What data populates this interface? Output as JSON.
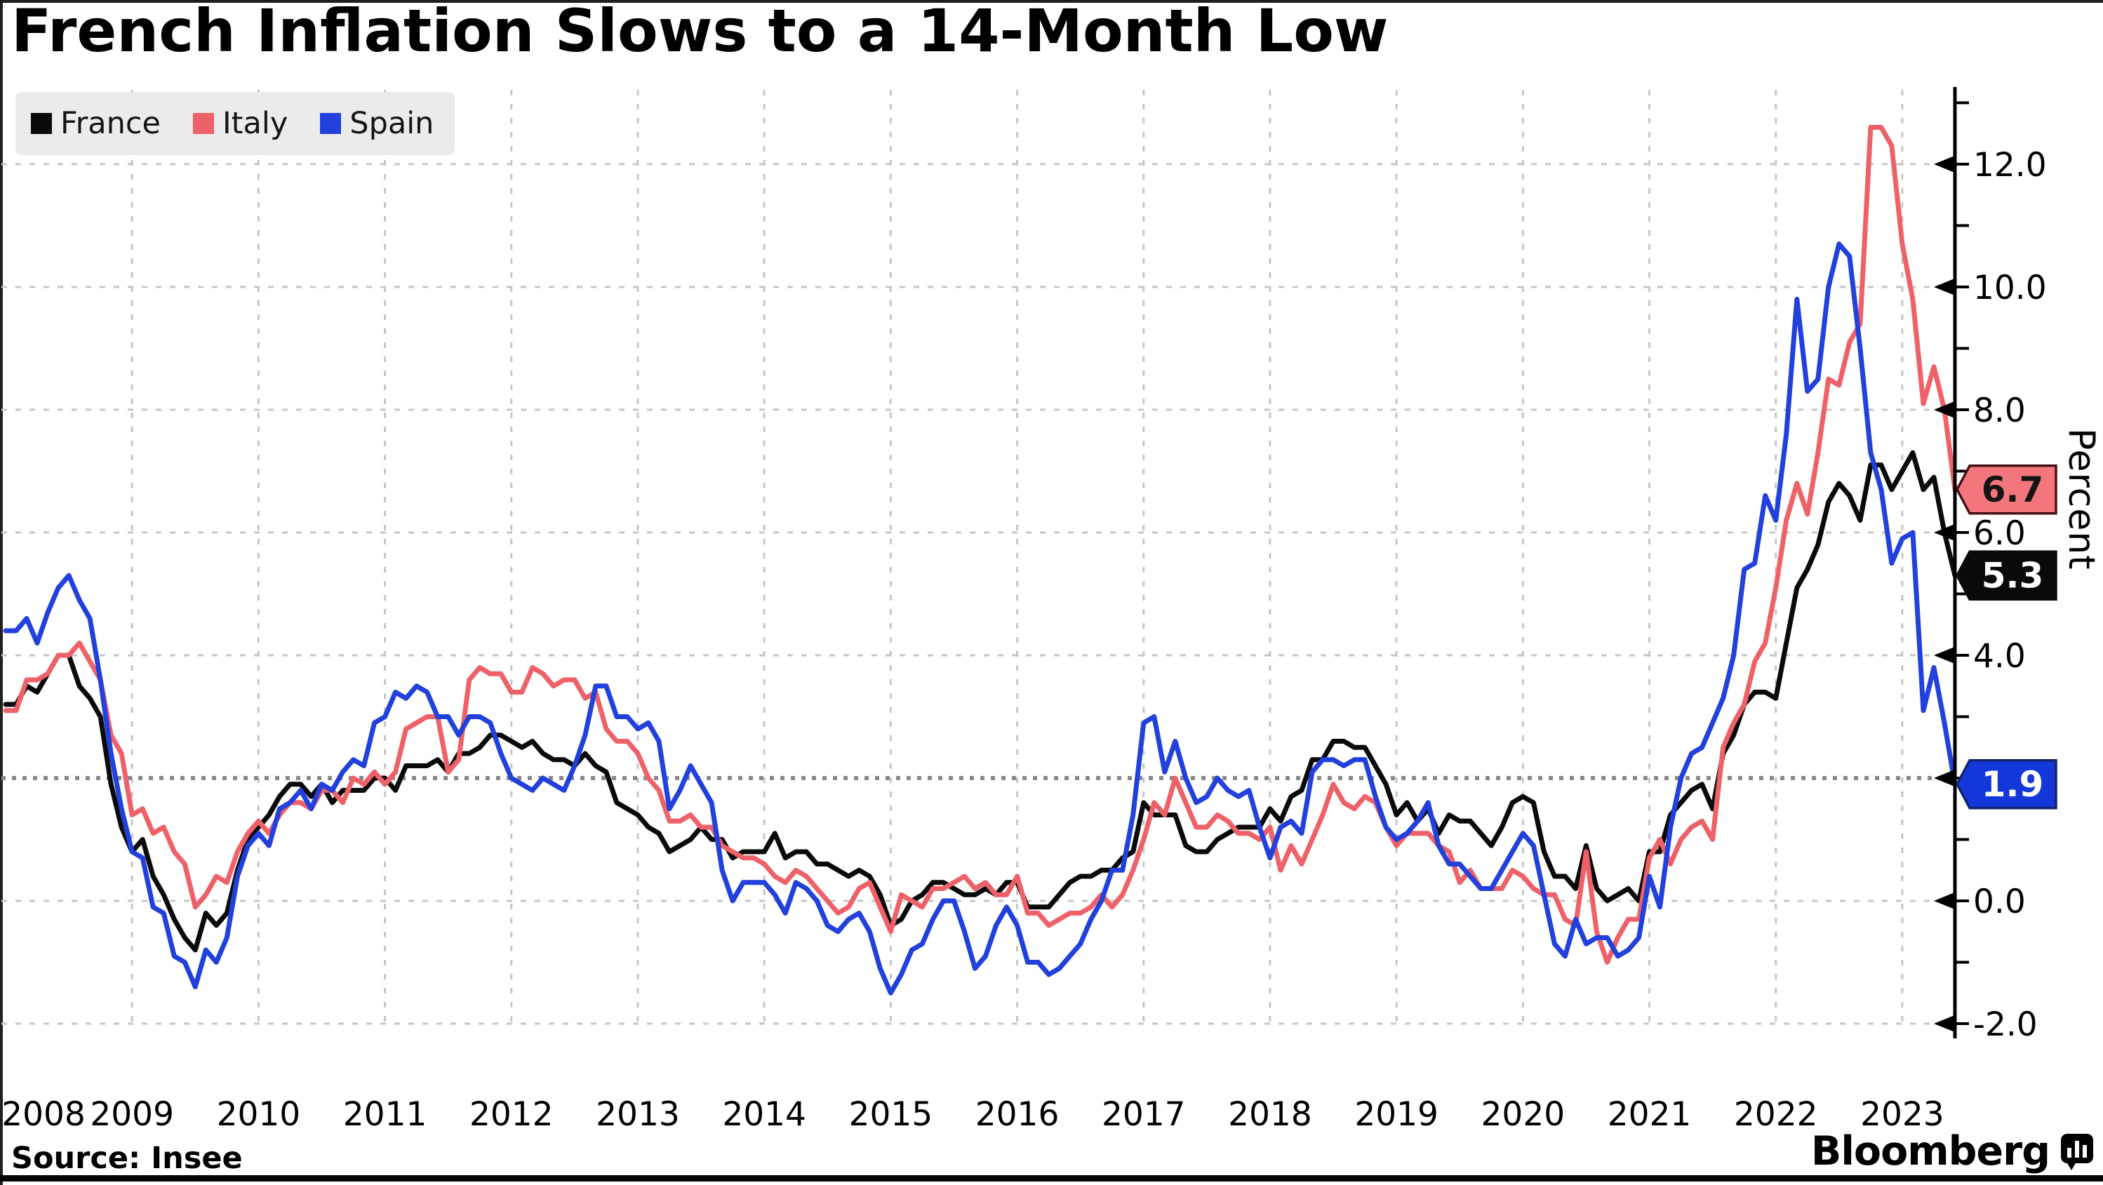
{
  "title": "French Inflation Slows to a 14-Month Low",
  "footer": {
    "source": "Source: Insee",
    "brand": "Bloomberg"
  },
  "chart_data": {
    "type": "line",
    "title": "French Inflation Slows to a 14-Month Low",
    "xlabel": "",
    "ylabel": "Percent",
    "frequency": "monthly",
    "x_start": "2008-01",
    "x_end": "2023-06",
    "ylim": [
      -2.6,
      13.3
    ],
    "grid": true,
    "legend_position": "top-left",
    "reference_line": {
      "value": 2.0,
      "style": "dotted"
    },
    "y_ticks": [
      {
        "value": 12,
        "label": "12.0"
      },
      {
        "value": 10,
        "label": "10.0"
      },
      {
        "value": 8,
        "label": "8.0"
      },
      {
        "value": 6,
        "label": "6.0"
      },
      {
        "value": 4,
        "label": "4.0"
      },
      {
        "value": 0,
        "label": "0.0"
      },
      {
        "value": -2,
        "label": "-2.0"
      }
    ],
    "y_minor_ticks": [
      13,
      11,
      9,
      7,
      5,
      3,
      1,
      -1
    ],
    "y_major_tick_values": [
      12,
      10,
      8,
      6,
      4,
      2,
      0,
      -2
    ],
    "x_year_labels": [
      "2008",
      "2009",
      "2010",
      "2011",
      "2012",
      "2013",
      "2014",
      "2015",
      "2016",
      "2017",
      "2018",
      "2019",
      "2020",
      "2021",
      "2022",
      "2023"
    ],
    "colors": {
      "grid": "#c6c6c6",
      "reference": "#8a8a8a",
      "axis": "#000000",
      "tick_label": "#000000"
    },
    "series": [
      {
        "name": "France",
        "color": "#0a0a0a",
        "end_label": {
          "text": "5.3",
          "fill": "#0a0a0a",
          "text_color": "#ffffff",
          "border": "#0a0a0a"
        },
        "values": [
          3.2,
          3.2,
          3.5,
          3.4,
          3.7,
          4.0,
          4.0,
          3.5,
          3.3,
          3.0,
          1.9,
          1.2,
          0.8,
          1.0,
          0.4,
          0.1,
          -0.3,
          -0.6,
          -0.8,
          -0.2,
          -0.4,
          -0.2,
          0.5,
          1.0,
          1.2,
          1.4,
          1.7,
          1.9,
          1.9,
          1.7,
          1.9,
          1.6,
          1.8,
          1.8,
          1.8,
          2.0,
          2.0,
          1.8,
          2.2,
          2.2,
          2.2,
          2.3,
          2.1,
          2.4,
          2.4,
          2.5,
          2.7,
          2.7,
          2.6,
          2.5,
          2.6,
          2.4,
          2.3,
          2.3,
          2.2,
          2.4,
          2.2,
          2.1,
          1.6,
          1.5,
          1.4,
          1.2,
          1.1,
          0.8,
          0.9,
          1.0,
          1.2,
          1.0,
          1.0,
          0.7,
          0.8,
          0.8,
          0.8,
          1.1,
          0.7,
          0.8,
          0.8,
          0.6,
          0.6,
          0.5,
          0.4,
          0.5,
          0.4,
          0.1,
          -0.4,
          -0.3,
          0.0,
          0.1,
          0.3,
          0.3,
          0.2,
          0.1,
          0.1,
          0.2,
          0.1,
          0.3,
          0.3,
          -0.1,
          -0.1,
          -0.1,
          0.1,
          0.3,
          0.4,
          0.4,
          0.5,
          0.5,
          0.7,
          0.8,
          1.6,
          1.4,
          1.4,
          1.4,
          0.9,
          0.8,
          0.8,
          1.0,
          1.1,
          1.2,
          1.2,
          1.2,
          1.5,
          1.3,
          1.7,
          1.8,
          2.3,
          2.3,
          2.6,
          2.6,
          2.5,
          2.5,
          2.2,
          1.9,
          1.4,
          1.6,
          1.3,
          1.5,
          1.1,
          1.4,
          1.3,
          1.3,
          1.1,
          0.9,
          1.2,
          1.6,
          1.7,
          1.6,
          0.8,
          0.4,
          0.4,
          0.2,
          0.9,
          0.2,
          0.0,
          0.1,
          0.2,
          0.0,
          0.8,
          0.8,
          1.4,
          1.6,
          1.8,
          1.9,
          1.5,
          2.4,
          2.7,
          3.2,
          3.4,
          3.4,
          3.3,
          4.2,
          5.1,
          5.4,
          5.8,
          6.5,
          6.8,
          6.6,
          6.2,
          7.1,
          7.1,
          6.7,
          7.0,
          7.3,
          6.7,
          6.9,
          6.0,
          5.3
        ]
      },
      {
        "name": "Italy",
        "color": "#ef6168",
        "end_label": {
          "text": "6.7",
          "fill": "#f4767d",
          "text_color": "#151515",
          "border": "#431216"
        },
        "values": [
          3.1,
          3.1,
          3.6,
          3.6,
          3.7,
          4.0,
          4.0,
          4.2,
          3.9,
          3.6,
          2.7,
          2.4,
          1.4,
          1.5,
          1.1,
          1.2,
          0.8,
          0.6,
          -0.1,
          0.1,
          0.4,
          0.3,
          0.8,
          1.1,
          1.3,
          1.1,
          1.4,
          1.6,
          1.6,
          1.5,
          1.8,
          1.8,
          1.6,
          2.0,
          1.9,
          2.1,
          1.9,
          2.1,
          2.8,
          2.9,
          3.0,
          3.0,
          2.1,
          2.3,
          3.6,
          3.8,
          3.7,
          3.7,
          3.4,
          3.4,
          3.8,
          3.7,
          3.5,
          3.6,
          3.6,
          3.3,
          3.4,
          2.8,
          2.6,
          2.6,
          2.4,
          2.0,
          1.8,
          1.3,
          1.3,
          1.4,
          1.2,
          1.2,
          0.9,
          0.8,
          0.7,
          0.7,
          0.6,
          0.4,
          0.3,
          0.5,
          0.4,
          0.2,
          0.0,
          -0.2,
          -0.1,
          0.2,
          0.3,
          -0.1,
          -0.5,
          0.1,
          0.0,
          -0.1,
          0.2,
          0.2,
          0.3,
          0.4,
          0.2,
          0.3,
          0.1,
          0.1,
          0.4,
          -0.2,
          -0.2,
          -0.4,
          -0.3,
          -0.2,
          -0.2,
          -0.1,
          0.1,
          -0.1,
          0.1,
          0.5,
          1.0,
          1.6,
          1.4,
          2.0,
          1.6,
          1.2,
          1.2,
          1.4,
          1.3,
          1.1,
          1.1,
          1.0,
          1.2,
          0.5,
          0.9,
          0.6,
          1.0,
          1.4,
          1.9,
          1.6,
          1.5,
          1.7,
          1.6,
          1.2,
          0.9,
          1.1,
          1.1,
          1.1,
          0.9,
          0.8,
          0.3,
          0.5,
          0.2,
          0.2,
          0.2,
          0.5,
          0.4,
          0.2,
          0.1,
          0.1,
          -0.3,
          -0.4,
          0.8,
          -0.5,
          -1.0,
          -0.6,
          -0.3,
          -0.3,
          0.7,
          1.0,
          0.6,
          1.0,
          1.2,
          1.3,
          1.0,
          2.5,
          2.9,
          3.2,
          3.9,
          4.2,
          5.1,
          6.2,
          6.8,
          6.3,
          7.3,
          8.5,
          8.4,
          9.1,
          9.4,
          12.6,
          12.6,
          12.3,
          10.7,
          9.8,
          8.1,
          8.7,
          8.0,
          6.7
        ]
      },
      {
        "name": "Spain",
        "color": "#2140dc",
        "end_label": {
          "text": "1.9",
          "fill": "#1337d9",
          "text_color": "#ffffff",
          "border": "#13246e"
        },
        "values": [
          4.4,
          4.4,
          4.6,
          4.2,
          4.7,
          5.1,
          5.3,
          4.9,
          4.6,
          3.6,
          2.4,
          1.5,
          0.8,
          0.7,
          -0.1,
          -0.2,
          -0.9,
          -1.0,
          -1.4,
          -0.8,
          -1.0,
          -0.6,
          0.4,
          0.9,
          1.1,
          0.9,
          1.5,
          1.6,
          1.8,
          1.5,
          1.9,
          1.8,
          2.1,
          2.3,
          2.2,
          2.9,
          3.0,
          3.4,
          3.3,
          3.5,
          3.4,
          3.0,
          3.0,
          2.7,
          3.0,
          3.0,
          2.9,
          2.4,
          2.0,
          1.9,
          1.8,
          2.0,
          1.9,
          1.8,
          2.2,
          2.7,
          3.5,
          3.5,
          3.0,
          3.0,
          2.8,
          2.9,
          2.6,
          1.5,
          1.8,
          2.2,
          1.9,
          1.6,
          0.5,
          0.0,
          0.3,
          0.3,
          0.3,
          0.1,
          -0.2,
          0.3,
          0.2,
          0.0,
          -0.4,
          -0.5,
          -0.3,
          -0.2,
          -0.5,
          -1.1,
          -1.5,
          -1.2,
          -0.8,
          -0.7,
          -0.3,
          0.0,
          0.0,
          -0.5,
          -1.1,
          -0.9,
          -0.4,
          -0.1,
          -0.4,
          -1.0,
          -1.0,
          -1.2,
          -1.1,
          -0.9,
          -0.7,
          -0.3,
          0.0,
          0.5,
          0.5,
          1.4,
          2.9,
          3.0,
          2.1,
          2.6,
          2.0,
          1.6,
          1.7,
          2.0,
          1.8,
          1.7,
          1.8,
          1.2,
          0.7,
          1.2,
          1.3,
          1.1,
          2.1,
          2.3,
          2.3,
          2.2,
          2.3,
          2.3,
          1.7,
          1.2,
          1.0,
          1.1,
          1.3,
          1.6,
          0.9,
          0.6,
          0.6,
          0.4,
          0.2,
          0.2,
          0.5,
          0.8,
          1.1,
          0.9,
          0.1,
          -0.7,
          -0.9,
          -0.3,
          -0.7,
          -0.6,
          -0.6,
          -0.9,
          -0.8,
          -0.6,
          0.4,
          -0.1,
          1.2,
          2.0,
          2.4,
          2.5,
          2.9,
          3.3,
          4.0,
          5.4,
          5.5,
          6.6,
          6.2,
          7.6,
          9.8,
          8.3,
          8.5,
          10.0,
          10.7,
          10.5,
          9.0,
          7.3,
          6.7,
          5.5,
          5.9,
          6.0,
          3.1,
          3.8,
          2.9,
          1.9
        ]
      }
    ]
  }
}
